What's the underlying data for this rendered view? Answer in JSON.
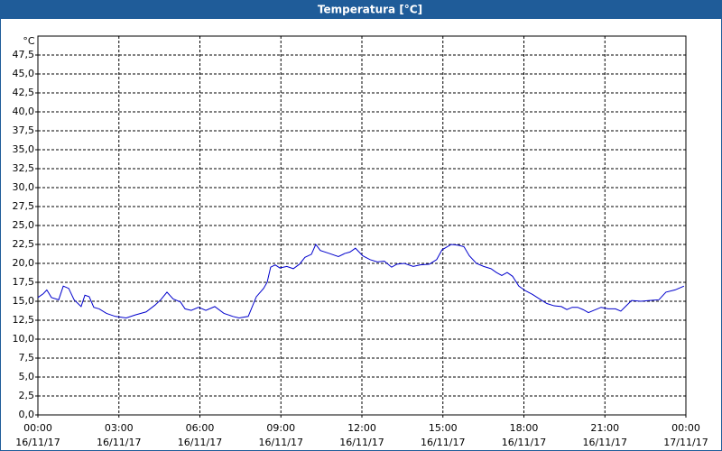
{
  "chart_data": {
    "type": "line",
    "title": "Temperatura [°C]",
    "y_label": "°C",
    "xlim": [
      0,
      24
    ],
    "ylim": [
      0,
      50
    ],
    "grid": true,
    "color": "#0000cc",
    "x": [
      0,
      0.2,
      0.33,
      0.5,
      0.77,
      0.94,
      1.14,
      1.34,
      1.6,
      1.74,
      1.9,
      2.07,
      2.27,
      2.54,
      2.87,
      3.27,
      3.61,
      4.01,
      4.34,
      4.55,
      4.78,
      5.01,
      5.28,
      5.45,
      5.68,
      5.95,
      6.22,
      6.55,
      6.89,
      7.22,
      7.45,
      7.79,
      8.09,
      8.36,
      8.49,
      8.62,
      8.79,
      8.96,
      9.22,
      9.46,
      9.69,
      9.89,
      10.13,
      10.29,
      10.46,
      10.8,
      11.13,
      11.36,
      11.56,
      11.76,
      12.03,
      12.3,
      12.57,
      12.83,
      13.1,
      13.3,
      13.57,
      13.9,
      14.17,
      14.5,
      14.77,
      14.97,
      15.31,
      15.58,
      15.78,
      15.98,
      16.24,
      16.51,
      16.78,
      16.98,
      17.18,
      17.38,
      17.58,
      17.81,
      18.05,
      18.32,
      18.58,
      18.85,
      19.12,
      19.39,
      19.59,
      19.79,
      19.99,
      20.19,
      20.39,
      20.59,
      20.86,
      21.12,
      21.39,
      21.59,
      21.79,
      21.99,
      22.33,
      22.66,
      23.0,
      23.26,
      23.6,
      23.93
    ],
    "values": [
      15.5,
      16.0,
      16.5,
      15.5,
      15.2,
      17.0,
      16.7,
      15.2,
      14.3,
      15.8,
      15.6,
      14.2,
      14.0,
      13.4,
      13.0,
      12.8,
      13.2,
      13.6,
      14.5,
      15.2,
      16.2,
      15.3,
      14.9,
      14.0,
      13.8,
      14.2,
      13.8,
      14.3,
      13.4,
      13.0,
      12.8,
      13.0,
      15.6,
      16.7,
      17.5,
      19.5,
      19.8,
      19.4,
      19.6,
      19.3,
      19.9,
      20.8,
      21.2,
      22.5,
      21.7,
      21.3,
      20.9,
      21.3,
      21.5,
      22.0,
      21.0,
      20.5,
      20.2,
      20.3,
      19.5,
      19.9,
      20.0,
      19.6,
      19.8,
      19.9,
      20.5,
      21.8,
      22.5,
      22.4,
      22.2,
      21.0,
      20.0,
      19.6,
      19.3,
      18.8,
      18.4,
      18.8,
      18.3,
      17.0,
      16.4,
      15.9,
      15.3,
      14.7,
      14.4,
      14.3,
      13.9,
      14.2,
      14.2,
      13.9,
      13.5,
      13.8,
      14.2,
      14.0,
      14.0,
      13.7,
      14.4,
      15.1,
      15.0,
      15.1,
      15.2,
      16.2,
      16.5,
      17.0
    ],
    "yticks": [
      {
        "value": 0,
        "label": "0,0"
      },
      {
        "value": 2.5,
        "label": "2,5"
      },
      {
        "value": 5,
        "label": "5,0"
      },
      {
        "value": 7.5,
        "label": "7,5"
      },
      {
        "value": 10,
        "label": "10,0"
      },
      {
        "value": 12.5,
        "label": "12,5"
      },
      {
        "value": 15,
        "label": "15,0"
      },
      {
        "value": 17.5,
        "label": "17,5"
      },
      {
        "value": 20,
        "label": "20,0"
      },
      {
        "value": 22.5,
        "label": "22,5"
      },
      {
        "value": 25,
        "label": "25,0"
      },
      {
        "value": 27.5,
        "label": "27,5"
      },
      {
        "value": 30,
        "label": "30,0"
      },
      {
        "value": 32.5,
        "label": "32,5"
      },
      {
        "value": 35,
        "label": "35,0"
      },
      {
        "value": 37.5,
        "label": "37,5"
      },
      {
        "value": 40,
        "label": "40,0"
      },
      {
        "value": 42.5,
        "label": "42,5"
      },
      {
        "value": 45,
        "label": "45,0"
      },
      {
        "value": 47.5,
        "label": "47,5"
      }
    ],
    "xticks": [
      {
        "value": 0,
        "label": [
          "00:00",
          "16/11/17"
        ]
      },
      {
        "value": 3,
        "label": [
          "03:00",
          "16/11/17"
        ]
      },
      {
        "value": 6,
        "label": [
          "06:00",
          "16/11/17"
        ]
      },
      {
        "value": 9,
        "label": [
          "09:00",
          "16/11/17"
        ]
      },
      {
        "value": 12,
        "label": [
          "12:00",
          "16/11/17"
        ]
      },
      {
        "value": 15,
        "label": [
          "15:00",
          "16/11/17"
        ]
      },
      {
        "value": 18,
        "label": [
          "18:00",
          "16/11/17"
        ]
      },
      {
        "value": 21,
        "label": [
          "21:00",
          "16/11/17"
        ]
      },
      {
        "value": 24,
        "label": [
          "00:00",
          "17/11/17"
        ]
      }
    ]
  }
}
